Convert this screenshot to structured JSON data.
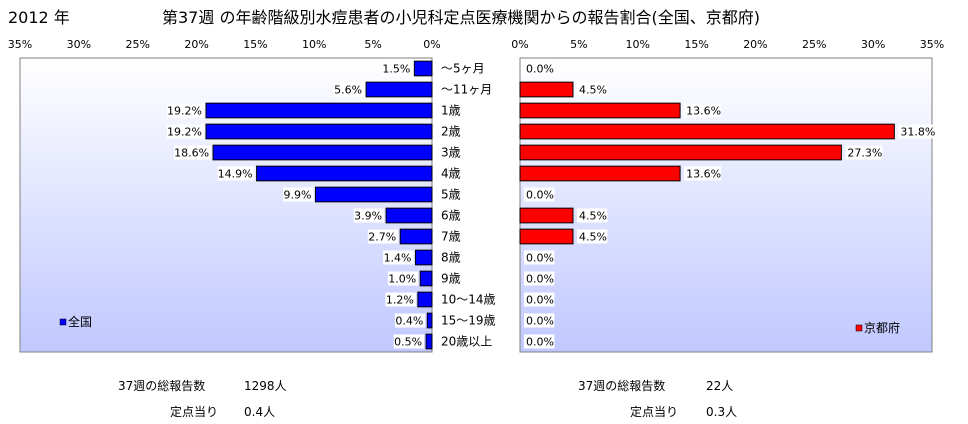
{
  "header": {
    "year": "2012 年",
    "title": "第37週 の年齢階級別水痘患者の小児科定点医療機関からの報告割合(全国、京都府)"
  },
  "chart_data": {
    "type": "bar",
    "orientation": "horizontal",
    "axis_max": 35,
    "ticks": [
      35,
      30,
      25,
      20,
      15,
      10,
      5,
      0
    ],
    "right_ticks": [
      0,
      5,
      10,
      15,
      20,
      25,
      30,
      35
    ],
    "tick_unit": "%",
    "categories": [
      "～5ヶ月",
      "～11ヶ月",
      "1歳",
      "2歳",
      "3歳",
      "4歳",
      "5歳",
      "6歳",
      "7歳",
      "8歳",
      "9歳",
      "10～14歳",
      "15～19歳",
      "20歳以上"
    ],
    "series": [
      {
        "name": "全国",
        "color": "#0000ff",
        "values": [
          1.5,
          5.6,
          19.2,
          19.2,
          18.6,
          14.9,
          9.9,
          3.9,
          2.7,
          1.4,
          1.0,
          1.2,
          0.4,
          0.5
        ],
        "labels": [
          "1.5%",
          "5.6%",
          "19.2%",
          "19.2%",
          "18.6%",
          "14.9%",
          "9.9%",
          "3.9%",
          "2.7%",
          "1.4%",
          "1.0%",
          "1.2%",
          "0.4%",
          "0.5%"
        ]
      },
      {
        "name": "京都府",
        "color": "#ff0000",
        "values": [
          0.0,
          4.5,
          13.6,
          31.8,
          27.3,
          13.6,
          0.0,
          4.5,
          4.5,
          0.0,
          0.0,
          0.0,
          0.0,
          0.0
        ],
        "labels": [
          "0.0%",
          "4.5%",
          "13.6%",
          "31.8%",
          "27.3%",
          "13.6%",
          "0.0%",
          "4.5%",
          "4.5%",
          "0.0%",
          "0.0%",
          "0.0%",
          "0.0%",
          "0.0%"
        ]
      }
    ],
    "legend": [
      "全国",
      "京都府"
    ],
    "grid": false
  },
  "summary": {
    "left": {
      "total_label": "37週の総報告数",
      "total_value": "1298人",
      "per_label": "定点当り",
      "per_value": "0.4人"
    },
    "right": {
      "total_label": "37週の総報告数",
      "total_value": "22人",
      "per_label": "定点当り",
      "per_value": "0.3人"
    }
  },
  "colors": {
    "plot_bg_top": "#ffffff",
    "plot_bg_bottom": "#c0c8ff",
    "blue": "#0000ff",
    "red": "#ff0000"
  }
}
